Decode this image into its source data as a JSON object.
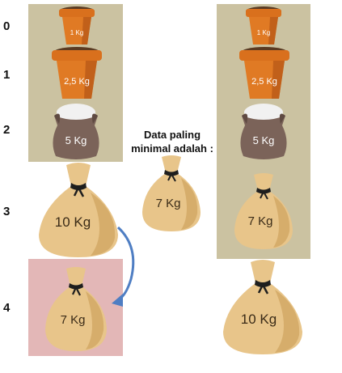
{
  "indices": [
    "0",
    "1",
    "2",
    "3",
    "4"
  ],
  "caption_line1": "Data paling",
  "caption_line2": "minimal adalah :",
  "left_stack": {
    "pot_small": "1 Kg",
    "pot_large": "2,5 Kg",
    "sack": "5 Kg",
    "bag_big": "10 Kg",
    "bag_moved": "7 Kg"
  },
  "middle_bag": "7 Kg",
  "right_stack": {
    "pot_small": "1 Kg",
    "pot_large": "2,5 Kg",
    "sack": "5 Kg",
    "bag_7": "7 Kg",
    "bag_10": "10 Kg"
  },
  "colors": {
    "panel_tan": "#cbc2a1",
    "panel_pink": "#e3b7b7",
    "pot": "#e07a24",
    "sack": "#7b6359",
    "bag": "#e8c58a",
    "arrow": "#4f7ec3"
  }
}
